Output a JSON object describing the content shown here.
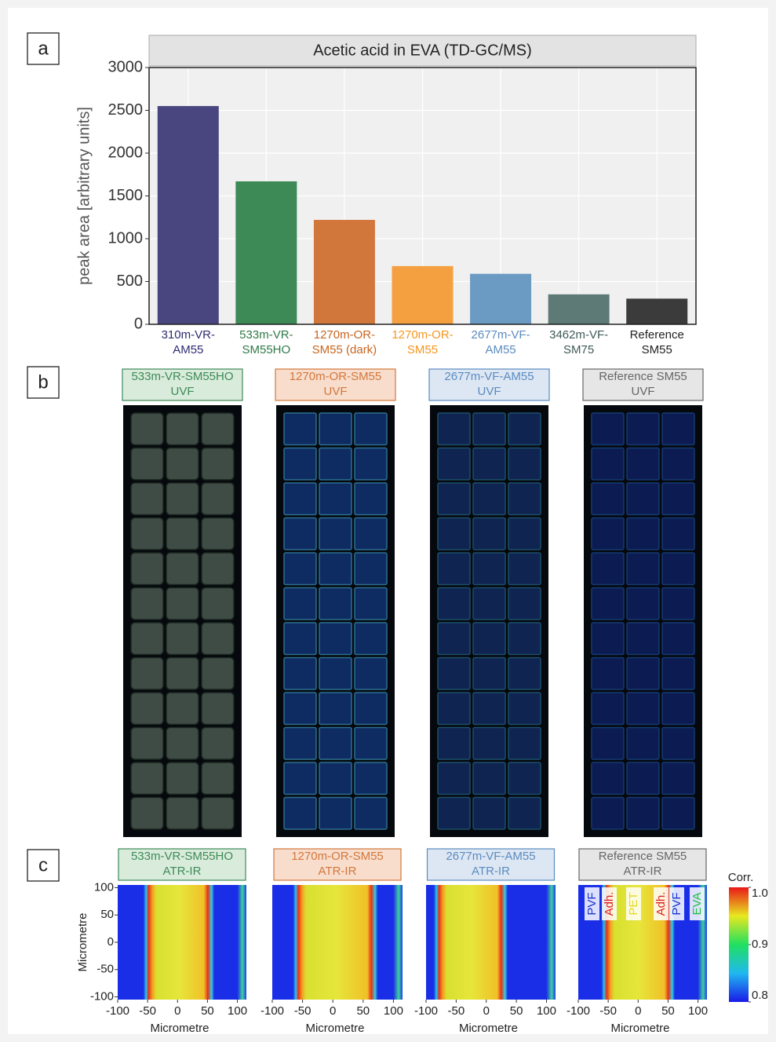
{
  "chart_data": [
    {
      "type": "bar",
      "panel": "a",
      "title": "Acetic acid in EVA (TD-GC/MS)",
      "ylabel": "peak area [arbitrary units]",
      "categories": [
        [
          "310m-VR-",
          "AM55"
        ],
        [
          "533m-VR-",
          "SM55HO"
        ],
        [
          "1270m-OR-",
          "SM55 (dark)"
        ],
        [
          "1270m-OR-",
          "SM55"
        ],
        [
          "2677m-VF-",
          "AM55"
        ],
        [
          "3462m-VF-",
          "SM75"
        ],
        [
          "Reference",
          "SM55"
        ]
      ],
      "values": [
        2550,
        1670,
        1220,
        680,
        590,
        350,
        300
      ],
      "colors": [
        "#49467f",
        "#3d8a57",
        "#d2773c",
        "#f5a040",
        "#6b9bc3",
        "#5d7a76",
        "#3b3b3b"
      ],
      "label_colors": [
        "#2f2c70",
        "#2f7a47",
        "#c8651f",
        "#f5961f",
        "#5b8bc0",
        "#3f5a56",
        "#222222"
      ],
      "ylim": [
        0,
        3000
      ],
      "yticks": [
        0,
        500,
        1000,
        1500,
        2000,
        2500,
        3000
      ],
      "grid": true
    },
    {
      "type": "heatmap",
      "panel": "c",
      "xlabel": "Micrometre",
      "ylabel": "Micrometre",
      "maps": [
        {
          "title": [
            "533m-VR-SM55HO",
            "ATR-IR"
          ],
          "color": "#3d8a57",
          "bg": "#d9ecdb"
        },
        {
          "title": [
            "1270m-OR-SM55",
            "ATR-IR"
          ],
          "color": "#d2773c",
          "bg": "#f8ddcc"
        },
        {
          "title": [
            "2677m-VF-AM55",
            "ATR-IR"
          ],
          "color": "#5b8bc0",
          "bg": "#dde7f3"
        },
        {
          "title": [
            "Reference SM55",
            "ATR-IR"
          ],
          "color": "#666666",
          "bg": "#e6e6e6"
        }
      ],
      "xlim": [
        -100,
        115
      ],
      "ylim": [
        -105,
        105
      ],
      "xticks": [
        -100,
        -50,
        0,
        50,
        100
      ],
      "yticks": [
        -100,
        -50,
        0,
        50,
        100
      ],
      "colorbar": {
        "label": "Corr.",
        "lim": [
          0.8,
          1.0
        ],
        "ticks": [
          0.8,
          0.9,
          {
            "value": 1.0,
            "label": "1.0"
          }
        ]
      },
      "layer_labels": [
        {
          "text": "PVF",
          "color": "#1a33d0"
        },
        {
          "text": "Adh.",
          "color": "#e02020"
        },
        {
          "text": "PET",
          "color": "#e8d820"
        },
        {
          "text": "Adh.",
          "color": "#e02020"
        },
        {
          "text": "PVF",
          "color": "#1a33d0"
        },
        {
          "text": "EVA",
          "color": "#20c040"
        }
      ]
    }
  ],
  "images": {
    "panel": "b",
    "items": [
      {
        "title": [
          "533m-VR-SM55HO",
          "UVF"
        ],
        "color": "#3d8a57",
        "bg": "#d9ecdb"
      },
      {
        "title": [
          "1270m-OR-SM55",
          "UVF"
        ],
        "color": "#d2773c",
        "bg": "#f8ddcc"
      },
      {
        "title": [
          "2677m-VF-AM55",
          "UVF"
        ],
        "color": "#5b8bc0",
        "bg": "#dde7f3"
      },
      {
        "title": [
          "Reference SM55",
          "UVF"
        ],
        "color": "#666666",
        "bg": "#e6e6e6"
      }
    ]
  }
}
